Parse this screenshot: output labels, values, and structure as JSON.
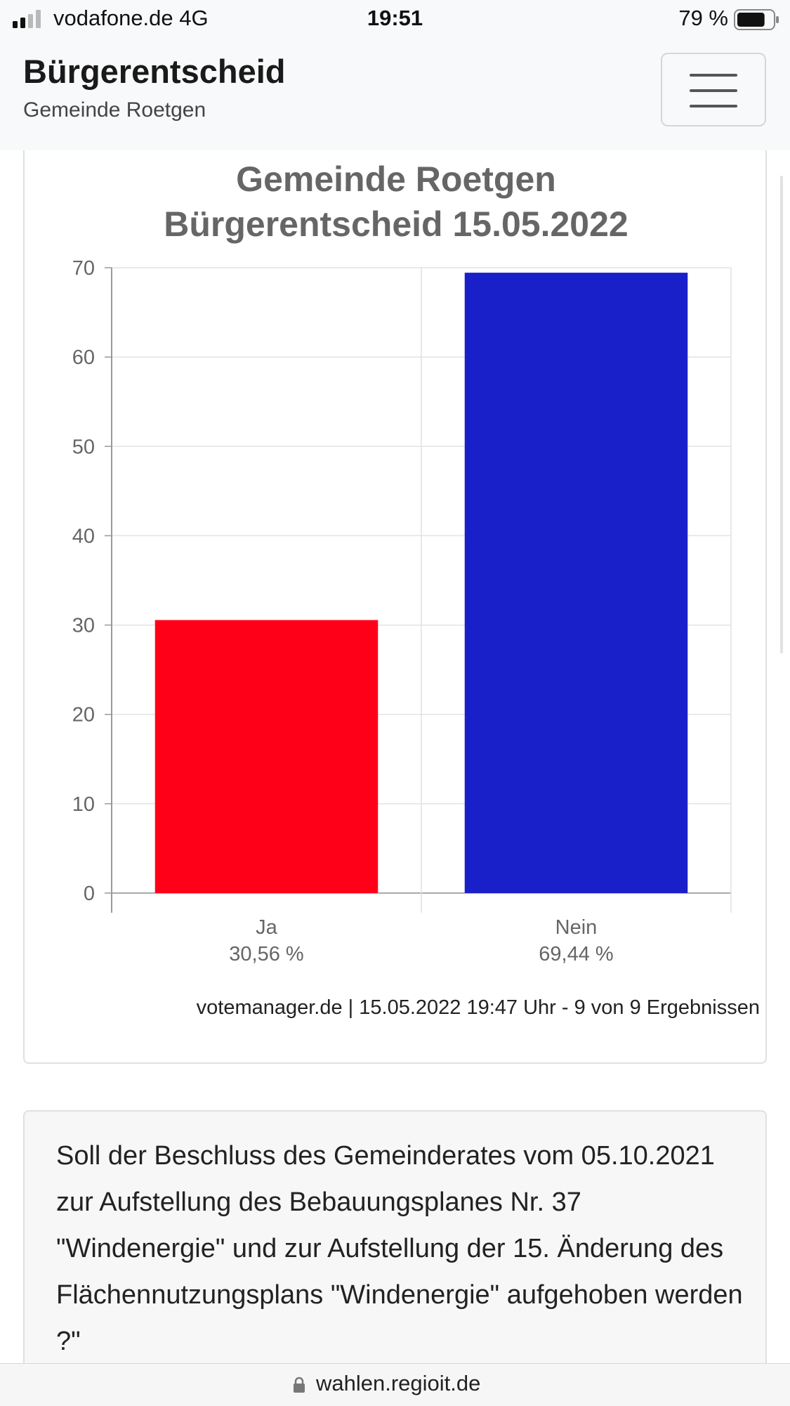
{
  "status_bar": {
    "carrier": "vodafone.de  4G",
    "time": "19:51",
    "battery": "79 %",
    "battery_level": 0.79,
    "signal_icon": "signal-icon",
    "battery_icon": "battery-icon"
  },
  "navbar": {
    "title": "Bürgerentscheid",
    "subtitle": "Gemeinde Roetgen",
    "menu_icon": "hamburger-menu-icon"
  },
  "chart": {
    "title_line1": "Gemeinde Roetgen",
    "title_line2": "Bürgerentscheid 15.05.2022",
    "footer": "votemanager.de | 15.05.2022 19:47 Uhr - 9 von 9 Ergebnissen"
  },
  "chart_data": {
    "type": "bar",
    "title": "Gemeinde Roetgen Bürgerentscheid 15.05.2022",
    "categories": [
      "Ja",
      "Nein"
    ],
    "category_labels": [
      "30,56 %",
      "69,44 %"
    ],
    "values": [
      30.56,
      69.44
    ],
    "colors": [
      "#ff0019",
      "#1920c9"
    ],
    "ylim": [
      0,
      70
    ],
    "yticks": [
      0,
      10,
      20,
      30,
      40,
      50,
      60,
      70
    ],
    "grid": true
  },
  "question": {
    "text": "Soll der Beschluss des Gemeinderates vom 05.10.2021 zur Aufstellung des Bebauungsplanes Nr. 37 \"Windenergie\" und zur Aufstellung der 15. Änderung des Flächennutzungsplans \"Windenergie\" aufgehoben werden ?\""
  },
  "browser": {
    "url": "wahlen.regioit.de",
    "lock_icon": "lock-icon"
  }
}
